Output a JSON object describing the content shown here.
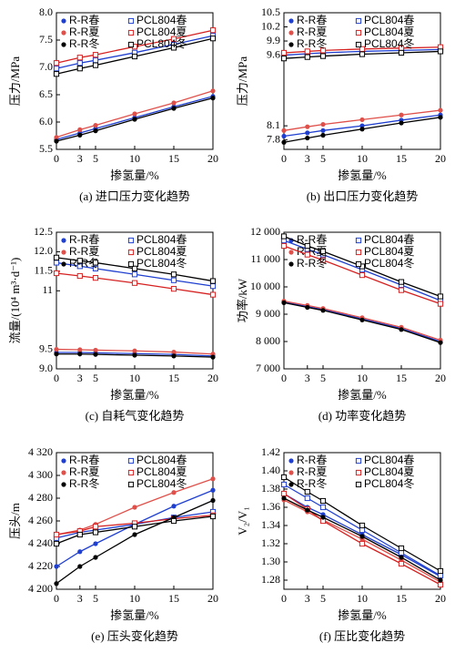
{
  "chart_data": [
    {
      "type": "line",
      "caption": "(a) 进口压力变化趋势",
      "xlabel": "掺氢量/%",
      "ylabel": "压力/MPa",
      "x": [
        0,
        3,
        5,
        10,
        15,
        20
      ],
      "xlim": [
        0,
        20
      ],
      "xticks": [
        0,
        3,
        5,
        10,
        15,
        20
      ],
      "ylim": [
        5.5,
        8.0
      ],
      "yticks": [
        5.5,
        {
          "value": 6,
          "label": "6.0"
        },
        6.5,
        {
          "value": 7,
          "label": "7.0"
        },
        7.5,
        {
          "value": 8,
          "label": "8.0"
        }
      ],
      "series": [
        {
          "name": "R-R春",
          "color": "#1f3fd0",
          "marker": "circle",
          "values": [
            5.68,
            5.8,
            5.88,
            6.08,
            6.28,
            6.47
          ]
        },
        {
          "name": "PCL804春",
          "color": "#1f3fd0",
          "marker": "square-open",
          "values": [
            6.98,
            7.08,
            7.13,
            7.27,
            7.42,
            7.58
          ]
        },
        {
          "name": "R-R夏",
          "color": "#e0504a",
          "marker": "circle",
          "values": [
            5.72,
            5.86,
            5.94,
            6.15,
            6.35,
            6.57
          ]
        },
        {
          "name": "PCL804夏",
          "color": "#d62020",
          "marker": "square-open",
          "values": [
            7.08,
            7.18,
            7.23,
            7.38,
            7.52,
            7.68
          ]
        },
        {
          "name": "R-R冬",
          "color": "#000000",
          "marker": "circle",
          "values": [
            5.65,
            5.76,
            5.84,
            6.05,
            6.25,
            6.44
          ]
        },
        {
          "name": "PCL804冬",
          "color": "#000000",
          "marker": "square-open",
          "values": [
            6.88,
            6.98,
            7.04,
            7.2,
            7.36,
            7.53
          ]
        }
      ]
    },
    {
      "type": "line",
      "caption": "(b) 出口压力变化趋势",
      "xlabel": "掺氢量/%",
      "ylabel": "压力/MPa",
      "x": [
        0,
        3,
        5,
        10,
        15,
        20
      ],
      "xlim": [
        0,
        20
      ],
      "xticks": [
        0,
        3,
        5,
        10,
        15,
        20
      ],
      "ylim": [
        7.6,
        10.5
      ],
      "yticks": [
        7.8,
        8.1,
        9.6,
        9.9,
        10.2,
        10.5
      ],
      "series": [
        {
          "name": "R-R春",
          "color": "#1f3fd0",
          "marker": "circle",
          "values": [
            7.88,
            7.95,
            8.0,
            8.1,
            8.22,
            8.33
          ]
        },
        {
          "name": "PCL804春",
          "color": "#1f3fd0",
          "marker": "square-open",
          "values": [
            9.6,
            9.63,
            9.65,
            9.68,
            9.7,
            9.72
          ]
        },
        {
          "name": "R-R夏",
          "color": "#e0504a",
          "marker": "circle",
          "values": [
            8.0,
            8.08,
            8.13,
            8.23,
            8.33,
            8.43
          ]
        },
        {
          "name": "PCL804夏",
          "color": "#d62020",
          "marker": "square-open",
          "values": [
            9.65,
            9.68,
            9.7,
            9.73,
            9.75,
            9.77
          ]
        },
        {
          "name": "R-R冬",
          "color": "#000000",
          "marker": "circle",
          "values": [
            7.75,
            7.84,
            7.9,
            8.03,
            8.16,
            8.28
          ]
        },
        {
          "name": "PCL804冬",
          "color": "#000000",
          "marker": "square-open",
          "values": [
            9.53,
            9.56,
            9.58,
            9.62,
            9.65,
            9.68
          ]
        }
      ]
    },
    {
      "type": "line",
      "caption": "(c) 自耗气变化趋势",
      "xlabel": "掺氢量/%",
      "ylabel": "流量/(10⁴ m³·d⁻¹)",
      "x": [
        0,
        3,
        5,
        10,
        15,
        20
      ],
      "xlim": [
        0,
        20
      ],
      "xticks": [
        0,
        3,
        5,
        10,
        15,
        20
      ],
      "ylim": [
        9.0,
        12.5
      ],
      "yticks": [
        {
          "value": 9,
          "label": "9.0"
        },
        9.5,
        11,
        11.5,
        {
          "value": 12,
          "label": "12.0"
        },
        12.5
      ],
      "series": [
        {
          "name": "R-R春",
          "color": "#1f3fd0",
          "marker": "circle",
          "values": [
            9.42,
            9.42,
            9.41,
            9.39,
            9.37,
            9.33
          ]
        },
        {
          "name": "PCL804春",
          "color": "#1f3fd0",
          "marker": "square-open",
          "values": [
            11.72,
            11.63,
            11.57,
            11.42,
            11.27,
            11.12
          ]
        },
        {
          "name": "R-R夏",
          "color": "#e0504a",
          "marker": "circle",
          "values": [
            9.5,
            9.49,
            9.48,
            9.46,
            9.43,
            9.38
          ]
        },
        {
          "name": "PCL804夏",
          "color": "#d62020",
          "marker": "square-open",
          "values": [
            11.45,
            11.38,
            11.33,
            11.2,
            11.05,
            10.9
          ]
        },
        {
          "name": "R-R冬",
          "color": "#000000",
          "marker": "circle",
          "values": [
            9.38,
            9.38,
            9.37,
            9.35,
            9.33,
            9.3
          ]
        },
        {
          "name": "PCL804冬",
          "color": "#000000",
          "marker": "square-open",
          "values": [
            11.85,
            11.77,
            11.72,
            11.57,
            11.42,
            11.25
          ]
        }
      ]
    },
    {
      "type": "line",
      "caption": "(d) 功率变化趋势",
      "xlabel": "掺氢量/%",
      "ylabel": "功率/kW",
      "x": [
        0,
        3,
        5,
        10,
        15,
        20
      ],
      "xlim": [
        0,
        20
      ],
      "xticks": [
        0,
        3,
        5,
        10,
        15,
        20
      ],
      "ylim": [
        7000,
        12000
      ],
      "yticks": [
        {
          "value": 7000,
          "label": "7 000"
        },
        {
          "value": 8000,
          "label": "8 000"
        },
        {
          "value": 9000,
          "label": "9 000"
        },
        {
          "value": 10000,
          "label": "10 000"
        },
        {
          "value": 11000,
          "label": "11 000"
        },
        {
          "value": 12000,
          "label": "12 000"
        }
      ],
      "series": [
        {
          "name": "R-R春",
          "color": "#1f3fd0",
          "marker": "circle",
          "values": [
            9450,
            9280,
            9170,
            8830,
            8480,
            8000
          ]
        },
        {
          "name": "PCL804春",
          "color": "#1f3fd0",
          "marker": "square-open",
          "values": [
            11700,
            11380,
            11180,
            10630,
            10070,
            9500
          ]
        },
        {
          "name": "R-R夏",
          "color": "#e0504a",
          "marker": "circle",
          "values": [
            9480,
            9320,
            9210,
            8870,
            8520,
            8050
          ]
        },
        {
          "name": "PCL804夏",
          "color": "#d62020",
          "marker": "square-open",
          "values": [
            11500,
            11180,
            10980,
            10430,
            9880,
            9380
          ]
        },
        {
          "name": "R-R冬",
          "color": "#000000",
          "marker": "circle",
          "values": [
            9420,
            9250,
            9140,
            8790,
            8440,
            7960
          ]
        },
        {
          "name": "PCL804冬",
          "color": "#000000",
          "marker": "square-open",
          "values": [
            11850,
            11500,
            11300,
            10750,
            10180,
            9650
          ]
        }
      ]
    },
    {
      "type": "line",
      "caption": "(e) 压头变化趋势",
      "xlabel": "掺氢量/%",
      "ylabel": "压头/m",
      "x": [
        0,
        3,
        5,
        10,
        15,
        20
      ],
      "xlim": [
        0,
        20
      ],
      "xticks": [
        0,
        3,
        5,
        10,
        15,
        20
      ],
      "ylim": [
        4200,
        4320
      ],
      "yticks": [
        {
          "value": 4200,
          "label": "4 200"
        },
        {
          "value": 4220,
          "label": "4 220"
        },
        {
          "value": 4240,
          "label": "4 240"
        },
        {
          "value": 4260,
          "label": "4 260"
        },
        {
          "value": 4280,
          "label": "4 280"
        },
        {
          "value": 4300,
          "label": "4 300"
        },
        {
          "value": 4320,
          "label": "4 320"
        }
      ],
      "series": [
        {
          "name": "R-R春",
          "color": "#1f3fd0",
          "marker": "circle",
          "values": [
            4220,
            4233,
            4240,
            4257,
            4273,
            4287
          ]
        },
        {
          "name": "PCL804春",
          "color": "#1f3fd0",
          "marker": "square-open",
          "values": [
            4245,
            4250,
            4252,
            4257,
            4263,
            4268
          ]
        },
        {
          "name": "R-R夏",
          "color": "#e0504a",
          "marker": "circle",
          "values": [
            4248,
            4252,
            4257,
            4272,
            4285,
            4297
          ]
        },
        {
          "name": "PCL804夏",
          "color": "#d62020",
          "marker": "square-open",
          "values": [
            4248,
            4251,
            4255,
            4258,
            4262,
            4265
          ]
        },
        {
          "name": "R-R冬",
          "color": "#000000",
          "marker": "circle",
          "values": [
            4205,
            4220,
            4228,
            4248,
            4263,
            4278
          ]
        },
        {
          "name": "PCL804冬",
          "color": "#000000",
          "marker": "square-open",
          "values": [
            4240,
            4248,
            4250,
            4255,
            4260,
            4264
          ]
        }
      ]
    },
    {
      "type": "line",
      "caption": "(f) 压比变化趋势",
      "xlabel": "掺氢量/%",
      "ylabel": "V₂/V₁",
      "x": [
        0,
        3,
        5,
        10,
        15,
        20
      ],
      "xlim": [
        0,
        20
      ],
      "xticks": [
        0,
        3,
        5,
        10,
        15,
        20
      ],
      "ylim": [
        1.27,
        1.42
      ],
      "yticks": [
        1.28,
        {
          "value": 1.3,
          "label": "1.30"
        },
        1.32,
        1.34,
        1.36,
        1.38,
        {
          "value": 1.4,
          "label": "1.40"
        },
        1.42
      ],
      "series": [
        {
          "name": "R-R春",
          "color": "#1f3fd0",
          "marker": "circle",
          "values": [
            1.375,
            1.36,
            1.352,
            1.33,
            1.308,
            1.284
          ]
        },
        {
          "name": "PCL804春",
          "color": "#1f3fd0",
          "marker": "square-open",
          "values": [
            1.385,
            1.37,
            1.36,
            1.335,
            1.31,
            1.285
          ]
        },
        {
          "name": "R-R夏",
          "color": "#e0504a",
          "marker": "circle",
          "values": [
            1.368,
            1.355,
            1.346,
            1.325,
            1.302,
            1.278
          ]
        },
        {
          "name": "PCL804夏",
          "color": "#d62020",
          "marker": "square-open",
          "values": [
            1.375,
            1.358,
            1.345,
            1.32,
            1.298,
            1.275
          ]
        },
        {
          "name": "R-R冬",
          "color": "#000000",
          "marker": "circle",
          "values": [
            1.37,
            1.357,
            1.349,
            1.328,
            1.305,
            1.28
          ]
        },
        {
          "name": "PCL804冬",
          "color": "#000000",
          "marker": "square-open",
          "values": [
            1.393,
            1.377,
            1.367,
            1.34,
            1.315,
            1.29
          ]
        }
      ]
    }
  ]
}
